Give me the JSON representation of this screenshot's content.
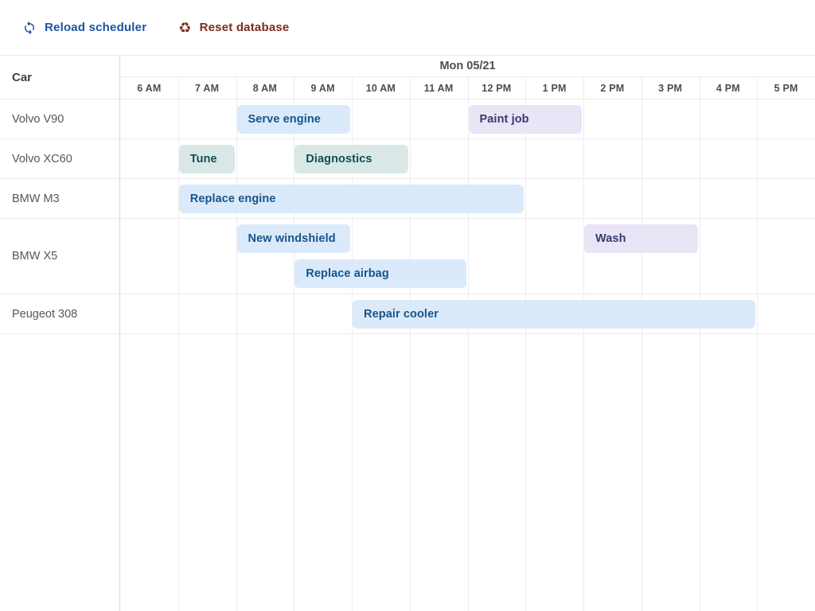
{
  "toolbar": {
    "reload": {
      "label": "Reload scheduler",
      "color": "#1c55a4"
    },
    "reset": {
      "label": "Reset database",
      "color": "#7d2c1d",
      "glyph": "♻"
    }
  },
  "scheduler": {
    "resource_column_header": "Car",
    "date_header": "Mon 05/21",
    "time_labels": [
      "6 AM",
      "7 AM",
      "8 AM",
      "9 AM",
      "10 AM",
      "11 AM",
      "12 PM",
      "1 PM",
      "2 PM",
      "3 PM",
      "4 PM",
      "5 PM"
    ],
    "axis_start_hour": 6,
    "axis_end_hour": 18,
    "event_colors": {
      "blue": {
        "bg": "#dbeafa",
        "text": "#17548a"
      },
      "teal": {
        "bg": "#d9e8e7",
        "text": "#0e4f54"
      },
      "purple": {
        "bg": "#e9e4f6",
        "text": "#363b6e"
      }
    },
    "resources": [
      {
        "name": "Volvo V90",
        "events": [
          {
            "label": "Serve engine",
            "start": 8,
            "end": 10,
            "color": "blue",
            "lane": 0
          },
          {
            "label": "Paint job",
            "start": 12,
            "end": 14,
            "color": "purple",
            "lane": 0
          }
        ]
      },
      {
        "name": "Volvo XC60",
        "events": [
          {
            "label": "Tune",
            "start": 7,
            "end": 8,
            "color": "teal",
            "lane": 0
          },
          {
            "label": "Diagnostics",
            "start": 9,
            "end": 11,
            "color": "teal",
            "lane": 0
          }
        ]
      },
      {
        "name": "BMW M3",
        "events": [
          {
            "label": "Replace engine",
            "start": 7,
            "end": 13,
            "color": "blue",
            "lane": 0
          }
        ]
      },
      {
        "name": "BMW X5",
        "events": [
          {
            "label": "New windshield",
            "start": 8,
            "end": 10,
            "color": "blue",
            "lane": 0
          },
          {
            "label": "Wash",
            "start": 14,
            "end": 16,
            "color": "purple",
            "lane": 0
          },
          {
            "label": "Replace airbag",
            "start": 9,
            "end": 12,
            "color": "blue",
            "lane": 1
          }
        ]
      },
      {
        "name": "Peugeot 308",
        "events": [
          {
            "label": "Repair cooler",
            "start": 10,
            "end": 17,
            "color": "blue",
            "lane": 0
          }
        ]
      }
    ]
  }
}
